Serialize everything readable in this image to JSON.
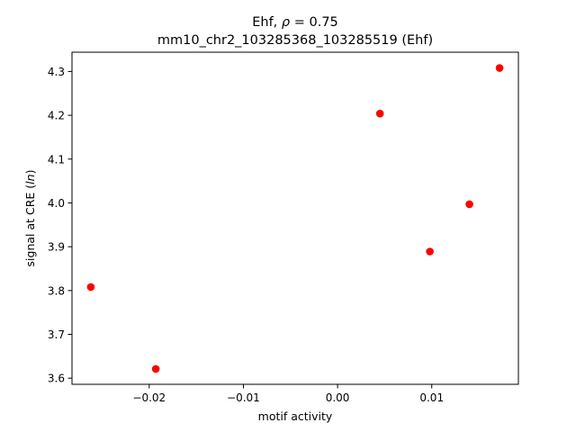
{
  "chart_data": {
    "type": "scatter",
    "title_line1_prefix": "Ehf, ",
    "title_rho_symbol": "ρ",
    "title_rho_rest": " = 0.75",
    "title_line2": "mm10_chr2_103285368_103285519 (Ehf)",
    "xlabel": "motif activity",
    "ylabel_prefix": "signal at CRE (",
    "ylabel_italic": "ln",
    "ylabel_suffix": ")",
    "xlim": [
      -0.0282,
      0.0192
    ],
    "ylim": [
      3.586,
      4.344
    ],
    "xticks": [
      -0.02,
      -0.01,
      0.0,
      0.01
    ],
    "xtick_labels": [
      "−0.02",
      "−0.01",
      "0.00",
      "0.01"
    ],
    "yticks": [
      3.6,
      3.7,
      3.8,
      3.9,
      4.0,
      4.1,
      4.2,
      4.3
    ],
    "ytick_labels": [
      "3.6",
      "3.7",
      "3.8",
      "3.9",
      "4.0",
      "4.1",
      "4.2",
      "4.3"
    ],
    "grid": false,
    "marker_color": "#ff0000",
    "points": [
      {
        "x": -0.0262,
        "y": 3.808
      },
      {
        "x": -0.0193,
        "y": 3.621
      },
      {
        "x": 0.0045,
        "y": 4.204
      },
      {
        "x": 0.0098,
        "y": 3.889
      },
      {
        "x": 0.014,
        "y": 3.997
      },
      {
        "x": 0.0172,
        "y": 4.308
      }
    ]
  }
}
